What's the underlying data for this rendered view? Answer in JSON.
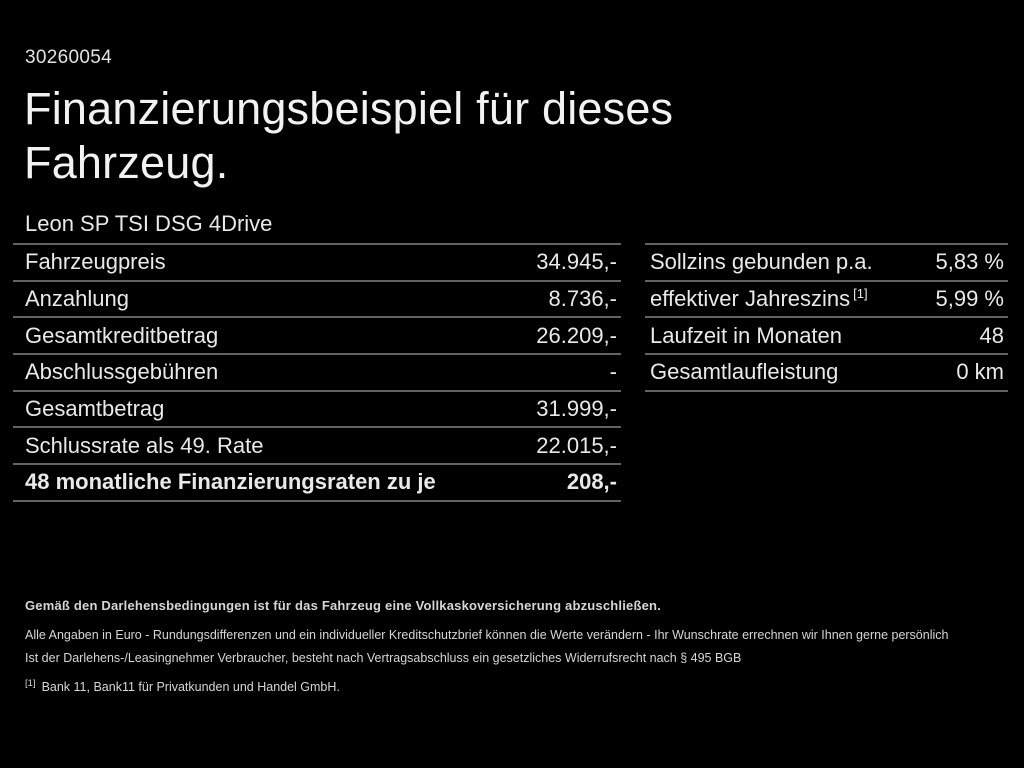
{
  "meta": {
    "doc_id": "30260054"
  },
  "header": {
    "title": "Finanzierungsbeispiel für dieses Fahrzeug.",
    "vehicle": "Leon SP TSI DSG 4Drive"
  },
  "finance_table": {
    "rows": [
      {
        "label": "Fahrzeugpreis",
        "value": "34.945,-"
      },
      {
        "label": "Anzahlung",
        "value": "8.736,-"
      },
      {
        "label": "Gesamtkreditbetrag",
        "value": "26.209,-"
      },
      {
        "label": "Abschlussgebühren",
        "value": "-"
      },
      {
        "label": "Gesamtbetrag",
        "value": "31.999,-"
      },
      {
        "label": "Schlussrate als 49. Rate",
        "value": "22.015,-"
      },
      {
        "label": "48 monatliche Finanzierungsraten zu je",
        "value": "208,-",
        "emphasis": true
      }
    ]
  },
  "conditions_table": {
    "rows": [
      {
        "label": "Sollzins gebunden p.a.",
        "value": "5,83 %"
      },
      {
        "label": "effektiver Jahreszins",
        "sup": "[1]",
        "value": "5,99 %"
      },
      {
        "label": "Laufzeit in Monaten",
        "value": "48"
      },
      {
        "label": "Gesamtlaufleistung",
        "value": "0 km"
      }
    ]
  },
  "footer": {
    "insurance_note": "Gemäß den Darlehensbedingungen ist für das Fahrzeug eine Vollkaskoversicherung abzuschließen.",
    "disclaimer_line1": "Alle Angaben in Euro - Rundungsdifferenzen und ein individueller Kreditschutzbrief können die Werte verändern - Ihr Wunschrate errechnen wir Ihnen gerne persönlich",
    "disclaimer_line2": "Ist der Darlehens-/Leasingnehmer Verbraucher, besteht nach Vertragsabschluss ein gesetzliches Widerrufsrecht nach § 495 BGB",
    "footnote_marker": "[1]",
    "footnote_text": "Bank 11, Bank11 für Privatkunden und Handel GmbH."
  },
  "colors": {
    "background": "#000000",
    "text": "#e9e9e9",
    "divider": "#636363"
  }
}
